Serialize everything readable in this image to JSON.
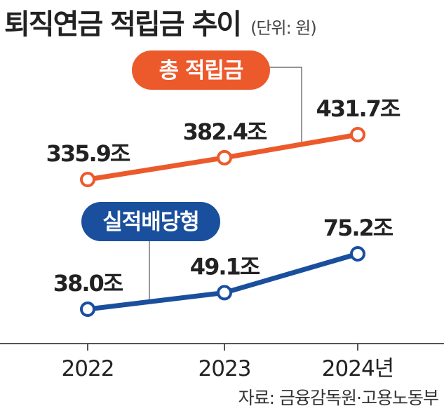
{
  "title": "퇴직연금 적립금 추이",
  "unit": "(단위: 원)",
  "source": "자료: 금융감독원·고용노동부",
  "colors": {
    "total": "#ec5a2c",
    "performance": "#1a4f9e",
    "axis": "#555555",
    "text": "#222222"
  },
  "chart_data": {
    "type": "line",
    "categories": [
      "2022",
      "2023",
      "2024년"
    ],
    "series": [
      {
        "name": "총 적립금",
        "values": [
          335.9,
          382.4,
          431.7
        ],
        "labels": [
          "335.9조",
          "382.4조",
          "431.7조"
        ]
      },
      {
        "name": "실적배당형",
        "values": [
          38.0,
          49.1,
          75.2
        ],
        "labels": [
          "38.0조",
          "49.1조",
          "75.2조"
        ]
      }
    ],
    "ylabel": "",
    "xlabel": "",
    "grid": false
  }
}
